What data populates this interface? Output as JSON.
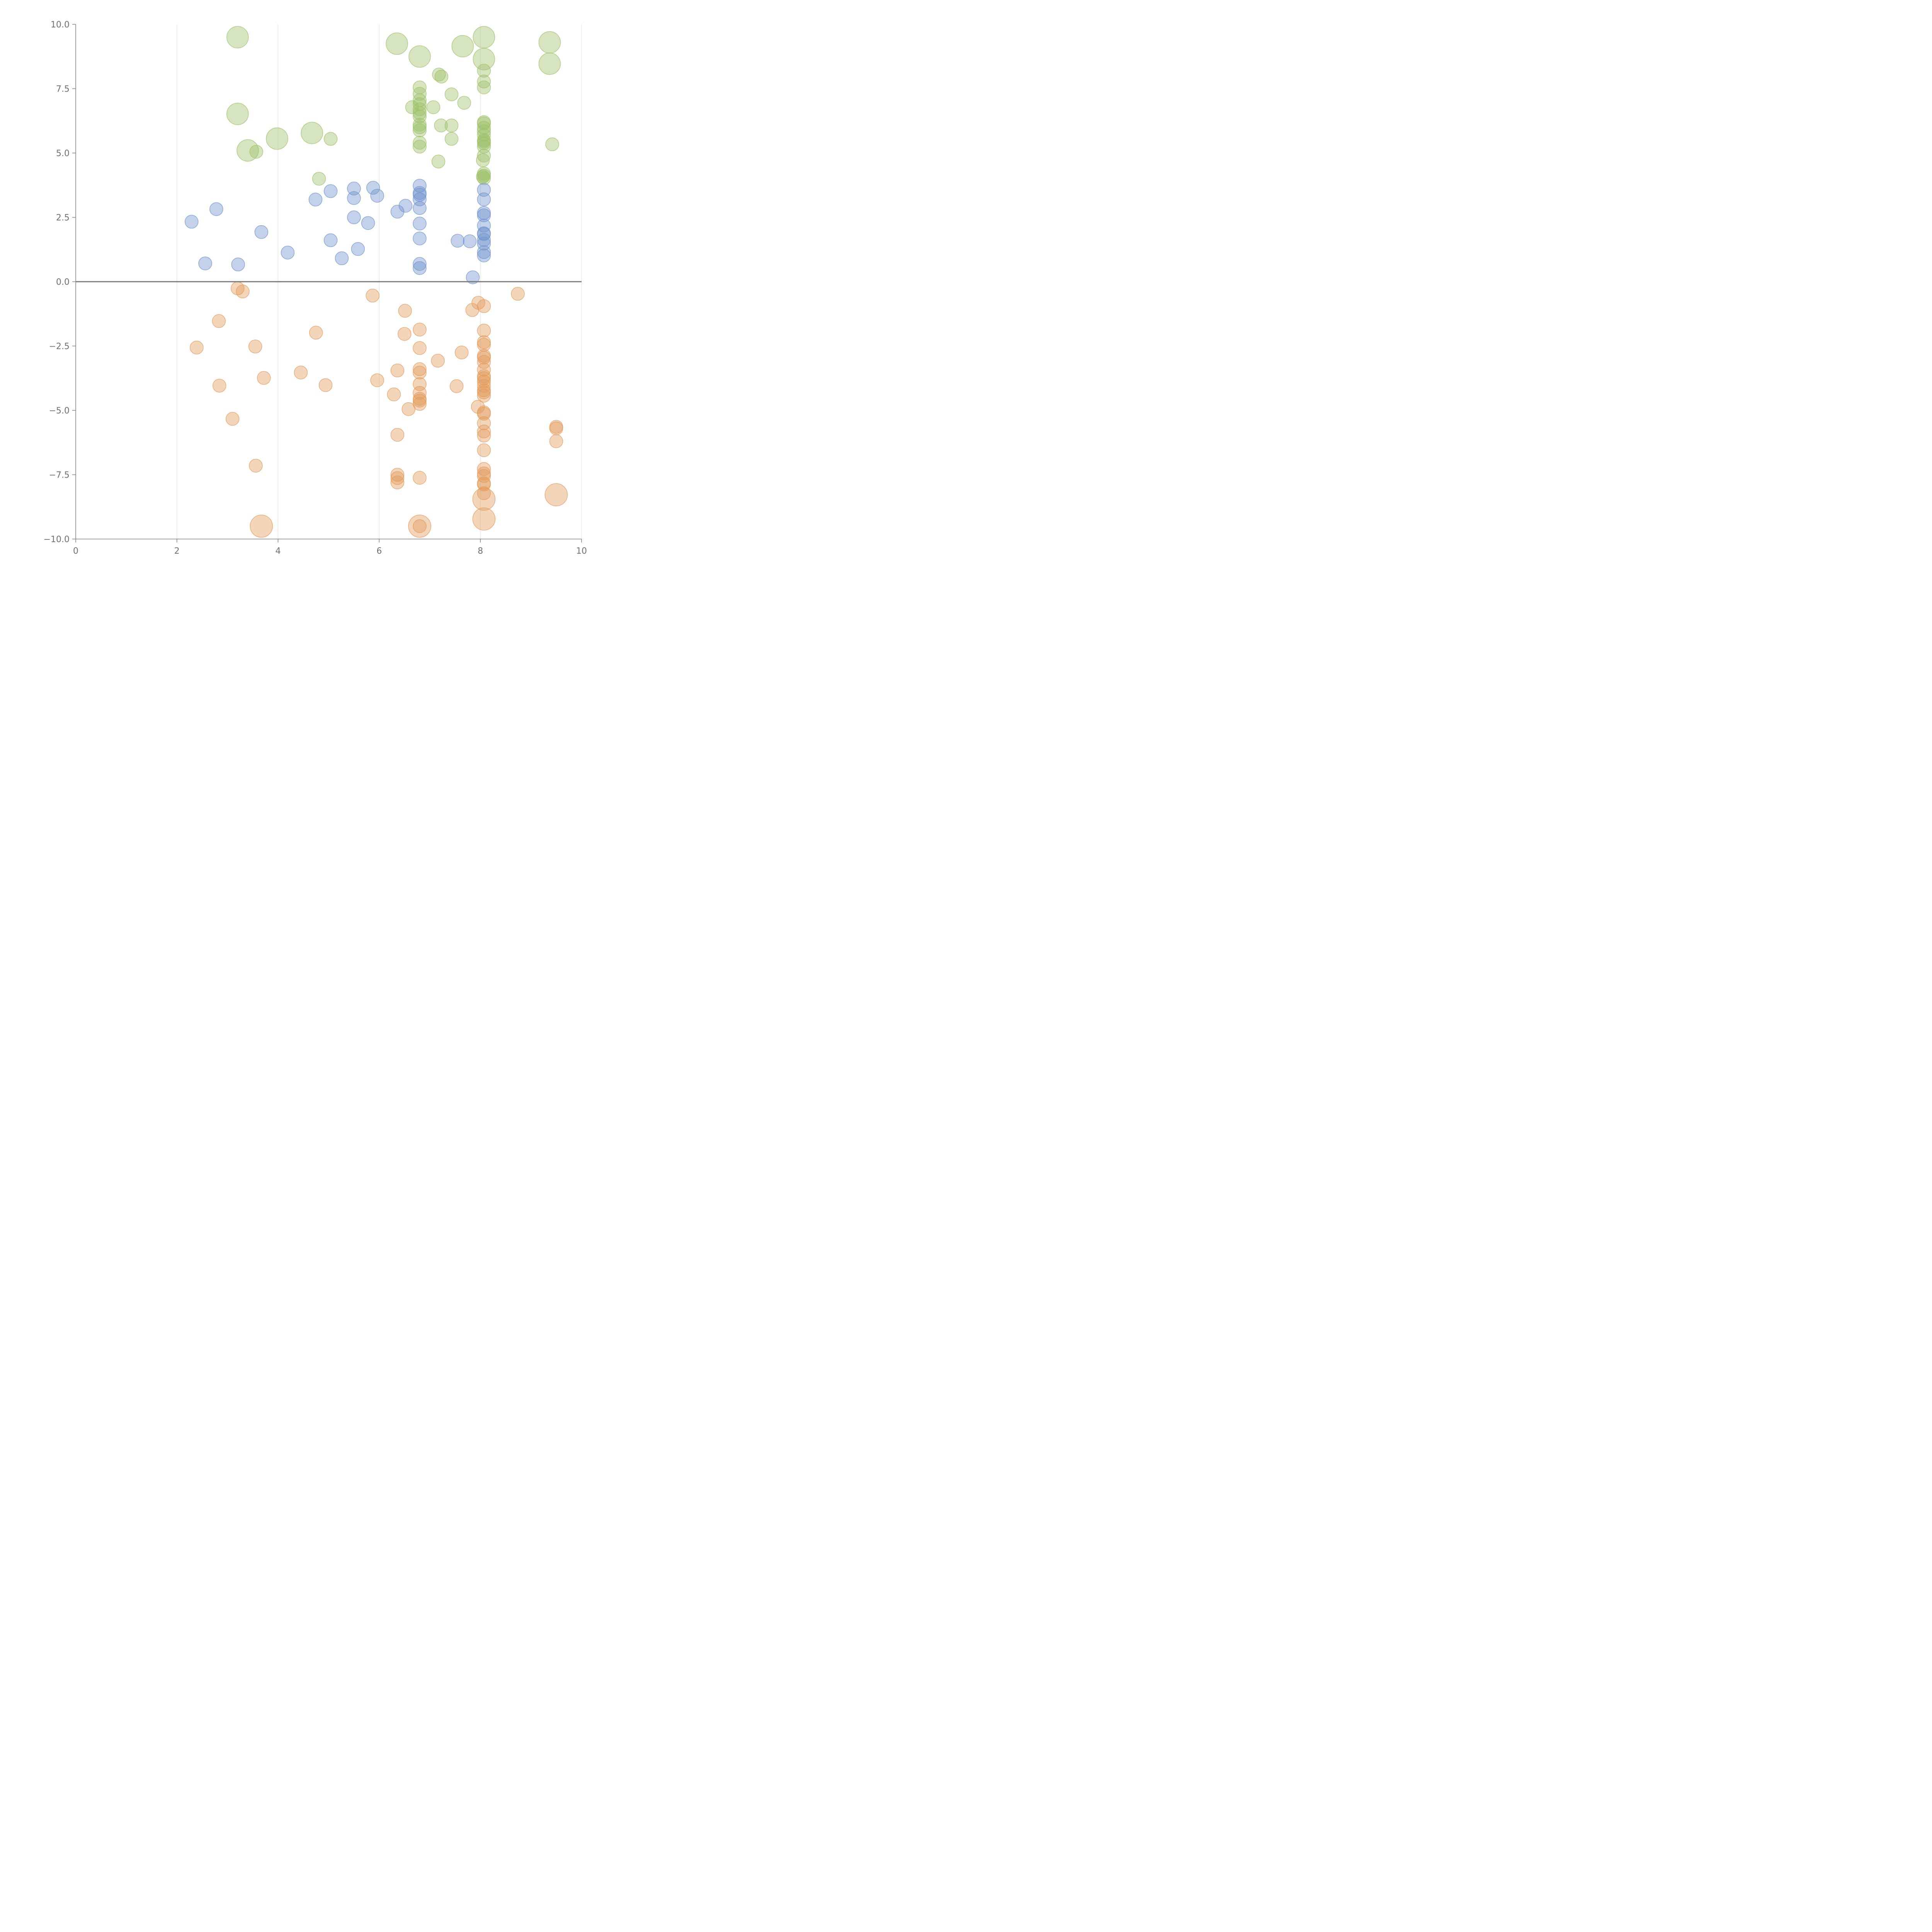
{
  "chart_data": {
    "type": "scatter",
    "title": "",
    "xlabel": "",
    "ylabel": "",
    "xlim": [
      0,
      10
    ],
    "ylim": [
      -10,
      10
    ],
    "x_ticks": [
      "0",
      "2",
      "4",
      "6",
      "8",
      "10"
    ],
    "y_ticks": [
      "10.0",
      "7.5",
      "5.0",
      "2.5",
      "0.0",
      "−2.5",
      "−5.0",
      "−7.5",
      "−10.0"
    ],
    "x_tick_values": [
      0,
      2,
      4,
      6,
      8,
      10
    ],
    "y_tick_values": [
      10,
      7.5,
      5,
      2.5,
      0,
      -2.5,
      -5,
      -7.5,
      -10
    ],
    "vertical_grid": true,
    "horizontal_grid": false,
    "zero_line": true,
    "legend": "none",
    "colors": {
      "green": "#9dc06a",
      "blue": "#6f93cc",
      "orange": "#e39a5b",
      "axis": "#808080",
      "grid": "#dddddd"
    },
    "series": [
      {
        "color_key": "green",
        "points": [
          [
            3.2,
            9.5,
            2
          ],
          [
            6.35,
            9.25,
            2
          ],
          [
            6.8,
            8.75,
            2
          ],
          [
            7.65,
            9.15,
            2
          ],
          [
            8.07,
            9.5,
            2
          ],
          [
            9.37,
            9.3,
            2
          ],
          [
            8.07,
            8.65,
            2
          ],
          [
            9.37,
            8.47,
            2
          ],
          [
            8.07,
            8.2,
            0
          ],
          [
            7.18,
            8.05,
            0
          ],
          [
            7.23,
            7.97,
            0
          ],
          [
            8.07,
            7.78,
            0
          ],
          [
            6.8,
            7.55,
            0
          ],
          [
            8.07,
            7.55,
            0
          ],
          [
            6.8,
            7.3,
            0
          ],
          [
            7.43,
            7.28,
            0
          ],
          [
            6.8,
            7.05,
            0
          ],
          [
            7.68,
            6.95,
            0
          ],
          [
            6.8,
            6.9,
            0
          ],
          [
            6.65,
            6.78,
            0
          ],
          [
            7.07,
            6.78,
            0
          ],
          [
            6.8,
            6.7,
            0
          ],
          [
            6.8,
            6.55,
            0
          ],
          [
            3.2,
            6.52,
            2
          ],
          [
            6.8,
            6.42,
            0
          ],
          [
            8.07,
            6.2,
            0
          ],
          [
            8.07,
            6.15,
            0
          ],
          [
            6.8,
            6.1,
            0
          ],
          [
            7.22,
            6.07,
            0
          ],
          [
            7.43,
            6.07,
            0
          ],
          [
            6.8,
            6.0,
            0
          ],
          [
            8.07,
            5.98,
            0
          ],
          [
            6.8,
            5.88,
            0
          ],
          [
            8.07,
            5.85,
            0
          ],
          [
            4.67,
            5.78,
            2
          ],
          [
            8.07,
            5.7,
            0
          ],
          [
            3.98,
            5.56,
            2
          ],
          [
            5.04,
            5.55,
            0
          ],
          [
            7.43,
            5.55,
            0
          ],
          [
            8.07,
            5.5,
            0
          ],
          [
            8.07,
            5.45,
            0
          ],
          [
            6.8,
            5.4,
            0
          ],
          [
            8.07,
            5.38,
            0
          ],
          [
            9.42,
            5.34,
            0
          ],
          [
            6.8,
            5.25,
            0
          ],
          [
            8.07,
            5.25,
            0
          ],
          [
            3.4,
            5.1,
            2
          ],
          [
            3.57,
            5.05,
            0
          ],
          [
            8.07,
            4.9,
            0
          ],
          [
            8.05,
            4.72,
            0
          ],
          [
            7.17,
            4.67,
            0
          ],
          [
            8.07,
            4.2,
            0
          ],
          [
            8.07,
            4.12,
            0
          ],
          [
            8.05,
            4.08,
            0
          ],
          [
            8.07,
            4.02,
            0
          ],
          [
            4.81,
            4.0,
            0
          ]
        ]
      },
      {
        "color_key": "blue",
        "points": [
          [
            6.8,
            3.73,
            0
          ],
          [
            5.88,
            3.65,
            0
          ],
          [
            5.5,
            3.62,
            0
          ],
          [
            8.07,
            3.57,
            0
          ],
          [
            5.04,
            3.52,
            0
          ],
          [
            6.8,
            3.45,
            0
          ],
          [
            6.8,
            3.38,
            0
          ],
          [
            5.96,
            3.34,
            0
          ],
          [
            5.5,
            3.25,
            0
          ],
          [
            8.07,
            3.2,
            0
          ],
          [
            4.74,
            3.19,
            0
          ],
          [
            6.8,
            3.2,
            0
          ],
          [
            6.52,
            2.95,
            0
          ],
          [
            6.8,
            2.86,
            0
          ],
          [
            2.78,
            2.82,
            0
          ],
          [
            6.36,
            2.72,
            0
          ],
          [
            8.07,
            2.67,
            0
          ],
          [
            8.07,
            2.58,
            0
          ],
          [
            5.5,
            2.5,
            0
          ],
          [
            2.29,
            2.33,
            0
          ],
          [
            5.78,
            2.28,
            0
          ],
          [
            6.8,
            2.26,
            0
          ],
          [
            8.07,
            2.18,
            0
          ],
          [
            3.67,
            1.93,
            0
          ],
          [
            8.07,
            1.88,
            0
          ],
          [
            8.07,
            1.85,
            0
          ],
          [
            6.8,
            1.68,
            0
          ],
          [
            8.07,
            1.62,
            0
          ],
          [
            5.04,
            1.61,
            0
          ],
          [
            7.55,
            1.59,
            0
          ],
          [
            7.79,
            1.57,
            0
          ],
          [
            8.07,
            1.48,
            0
          ],
          [
            5.58,
            1.27,
            0
          ],
          [
            8.07,
            1.15,
            0
          ],
          [
            4.19,
            1.13,
            0
          ],
          [
            8.07,
            1.02,
            0
          ],
          [
            5.26,
            0.91,
            0
          ],
          [
            2.56,
            0.71,
            0
          ],
          [
            6.8,
            0.69,
            0
          ],
          [
            3.21,
            0.67,
            0
          ],
          [
            6.8,
            0.53,
            0
          ],
          [
            7.85,
            0.17,
            0
          ]
        ]
      },
      {
        "color_key": "orange",
        "points": [
          [
            3.2,
            -0.26,
            0
          ],
          [
            3.3,
            -0.38,
            0
          ],
          [
            8.74,
            -0.47,
            0
          ],
          [
            5.87,
            -0.54,
            0
          ],
          [
            7.96,
            -0.82,
            0
          ],
          [
            8.07,
            -0.95,
            0
          ],
          [
            7.84,
            -1.1,
            0
          ],
          [
            6.51,
            -1.13,
            0
          ],
          [
            2.83,
            -1.53,
            0
          ],
          [
            6.8,
            -1.86,
            0
          ],
          [
            8.07,
            -1.9,
            0
          ],
          [
            4.75,
            -1.98,
            0
          ],
          [
            6.5,
            -2.03,
            0
          ],
          [
            8.07,
            -2.35,
            0
          ],
          [
            8.07,
            -2.45,
            0
          ],
          [
            3.55,
            -2.52,
            0
          ],
          [
            2.39,
            -2.56,
            0
          ],
          [
            6.8,
            -2.58,
            0
          ],
          [
            7.63,
            -2.75,
            0
          ],
          [
            8.07,
            -2.88,
            0
          ],
          [
            8.07,
            -2.95,
            0
          ],
          [
            7.16,
            -3.07,
            0
          ],
          [
            8.07,
            -3.12,
            0
          ],
          [
            6.8,
            -3.4,
            0
          ],
          [
            6.36,
            -3.45,
            0
          ],
          [
            8.07,
            -3.42,
            0
          ],
          [
            4.45,
            -3.53,
            0
          ],
          [
            6.8,
            -3.53,
            0
          ],
          [
            8.07,
            -3.67,
            0
          ],
          [
            8.07,
            -3.75,
            0
          ],
          [
            3.72,
            -3.74,
            0
          ],
          [
            5.96,
            -3.83,
            0
          ],
          [
            8.07,
            -3.88,
            0
          ],
          [
            6.8,
            -3.98,
            0
          ],
          [
            4.94,
            -4.02,
            0
          ],
          [
            2.84,
            -4.04,
            0
          ],
          [
            8.07,
            -4.05,
            0
          ],
          [
            7.53,
            -4.06,
            0
          ],
          [
            8.07,
            -4.22,
            0
          ],
          [
            6.8,
            -4.32,
            0
          ],
          [
            8.07,
            -4.3,
            0
          ],
          [
            6.29,
            -4.38,
            0
          ],
          [
            8.07,
            -4.43,
            0
          ],
          [
            6.8,
            -4.55,
            0
          ],
          [
            6.8,
            -4.62,
            0
          ],
          [
            6.8,
            -4.75,
            0
          ],
          [
            7.95,
            -4.86,
            0
          ],
          [
            6.58,
            -4.95,
            0
          ],
          [
            8.07,
            -5.08,
            0
          ],
          [
            8.07,
            -5.13,
            0
          ],
          [
            3.1,
            -5.33,
            0
          ],
          [
            8.07,
            -5.5,
            0
          ],
          [
            9.5,
            -5.64,
            0
          ],
          [
            9.5,
            -5.7,
            0
          ],
          [
            8.07,
            -5.82,
            0
          ],
          [
            6.36,
            -5.95,
            0
          ],
          [
            8.07,
            -5.98,
            0
          ],
          [
            9.5,
            -6.2,
            0
          ],
          [
            8.07,
            -6.55,
            0
          ],
          [
            3.56,
            -7.15,
            0
          ],
          [
            8.07,
            -7.28,
            0
          ],
          [
            6.36,
            -7.5,
            0
          ],
          [
            8.07,
            -7.45,
            0
          ],
          [
            8.07,
            -7.55,
            0
          ],
          [
            6.8,
            -7.62,
            0
          ],
          [
            6.36,
            -7.63,
            0
          ],
          [
            6.36,
            -7.8,
            0
          ],
          [
            8.07,
            -7.83,
            0
          ],
          [
            8.07,
            -7.88,
            0
          ],
          [
            8.07,
            -8.22,
            0
          ],
          [
            9.5,
            -8.28,
            1
          ],
          [
            8.07,
            -8.45,
            1
          ],
          [
            8.07,
            -9.22,
            1
          ],
          [
            3.67,
            -9.5,
            1
          ],
          [
            6.8,
            -9.5,
            1
          ],
          [
            6.8,
            -9.5,
            0
          ]
        ]
      }
    ]
  }
}
